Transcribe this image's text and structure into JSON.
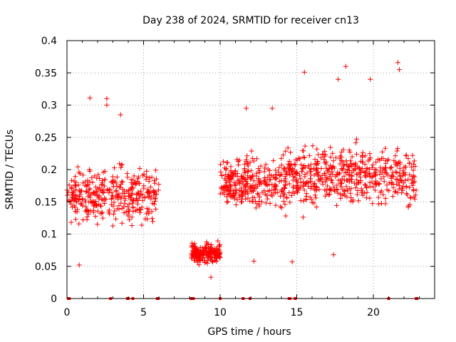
{
  "chart_data": {
    "type": "scatter",
    "title": "Day 238 of 2024, SRMTID for receiver cn13",
    "xlabel": "GPS time / hours",
    "ylabel": "SRMTID / TECUs",
    "xlim": [
      0,
      24
    ],
    "ylim": [
      0,
      0.4
    ],
    "xticks": [
      0,
      5,
      10,
      15,
      20
    ],
    "xtick_labels": [
      "0",
      "5",
      "10",
      "15",
      "20"
    ],
    "yticks": [
      0,
      0.05,
      0.1,
      0.15,
      0.2,
      0.25,
      0.3,
      0.35,
      0.4
    ],
    "ytick_labels": [
      "0",
      "0.05",
      "0.1",
      "0.15",
      "0.2",
      "0.25",
      "0.3",
      "0.35",
      "0.4"
    ],
    "grid": true,
    "marker": "+",
    "color": "#ff0000",
    "clusters": [
      {
        "x_start": 0.0,
        "x_end": 6.0,
        "y_center": 0.16,
        "y_spread": 0.05,
        "count": 360
      },
      {
        "x_start": 8.1,
        "x_end": 10.0,
        "y_center": 0.07,
        "y_spread": 0.018,
        "count": 200
      },
      {
        "x_start": 10.0,
        "x_end": 14.4,
        "y_center": 0.18,
        "y_spread": 0.05,
        "count": 300
      },
      {
        "x_start": 14.4,
        "x_end": 22.8,
        "y_center": 0.19,
        "y_spread": 0.055,
        "count": 520
      }
    ],
    "peak_points": [
      {
        "x": 1.5,
        "y": 0.311
      },
      {
        "x": 2.6,
        "y": 0.31
      },
      {
        "x": 2.6,
        "y": 0.3
      },
      {
        "x": 3.5,
        "y": 0.285
      },
      {
        "x": 15.5,
        "y": 0.351
      },
      {
        "x": 18.2,
        "y": 0.36
      },
      {
        "x": 21.6,
        "y": 0.366
      },
      {
        "x": 21.7,
        "y": 0.355
      },
      {
        "x": 19.8,
        "y": 0.34
      },
      {
        "x": 17.7,
        "y": 0.34
      },
      {
        "x": 11.7,
        "y": 0.295
      },
      {
        "x": 13.4,
        "y": 0.295
      },
      {
        "x": 0.8,
        "y": 0.052
      },
      {
        "x": 14.7,
        "y": 0.057
      },
      {
        "x": 17.4,
        "y": 0.068
      },
      {
        "x": 9.4,
        "y": 0.033
      },
      {
        "x": 12.2,
        "y": 0.058
      }
    ],
    "zero_points_x": [
      0.1,
      0.15,
      2.85,
      3.95,
      4.0,
      4.3,
      5.9,
      5.95,
      8.1,
      8.2,
      8.25,
      10.0,
      11.5,
      11.95,
      14.5,
      14.55,
      14.9,
      21.0,
      22.8,
      22.85
    ]
  }
}
